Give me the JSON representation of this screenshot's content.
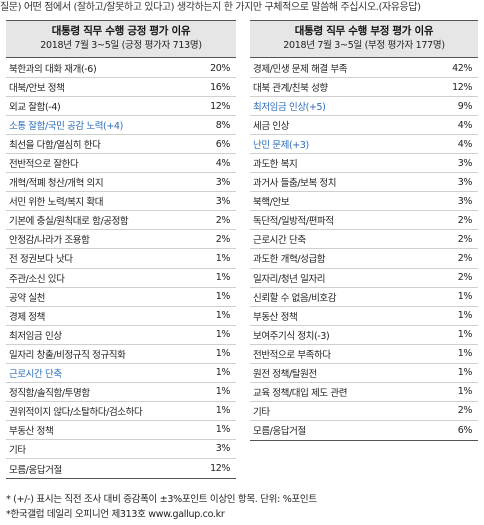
{
  "question": "질문) 어떤 점에서 (잘하고/잘못하고 있다고) 생각하는지 한 가지만 구체적으로 말씀해 주십시오.(자유응답)",
  "positive": {
    "title": "대통령 직무 수행 긍정 평가 이유",
    "subtitle": "2018년 7월 3~5일 (긍정 평가자 713명)",
    "rows": [
      {
        "label": "북한과의 대화 재개(-6)",
        "value": "20%",
        "highlight": false
      },
      {
        "label": "대북/안보 정책",
        "value": "16%",
        "highlight": false
      },
      {
        "label": "외교 잘함(-4)",
        "value": "12%",
        "highlight": false
      },
      {
        "label": "소통 잘함/국민 공감 노력(+4)",
        "value": "8%",
        "highlight": true
      },
      {
        "label": "최선을 다함/열심히 한다",
        "value": "6%",
        "highlight": false
      },
      {
        "label": "전반적으로 잘한다",
        "value": "4%",
        "highlight": false
      },
      {
        "label": "개혁/적폐 청산/개혁 의지",
        "value": "3%",
        "highlight": false
      },
      {
        "label": "서민 위한 노력/복지 확대",
        "value": "3%",
        "highlight": false
      },
      {
        "label": "기본에 충실/원칙대로 함/공정함",
        "value": "2%",
        "highlight": false
      },
      {
        "label": "안정감/나라가 조용함",
        "value": "2%",
        "highlight": false
      },
      {
        "label": "전 정권보다 낫다",
        "value": "1%",
        "highlight": false
      },
      {
        "label": "주관/소신 있다",
        "value": "1%",
        "highlight": false
      },
      {
        "label": "공약 실천",
        "value": "1%",
        "highlight": false
      },
      {
        "label": "경제 정책",
        "value": "1%",
        "highlight": false
      },
      {
        "label": "최저임금 인상",
        "value": "1%",
        "highlight": false
      },
      {
        "label": "일자리 창출/비정규직 정규직화",
        "value": "1%",
        "highlight": false
      },
      {
        "label": "근로시간 단축",
        "value": "1%",
        "highlight": true
      },
      {
        "label": "정직함/솔직함/투명함",
        "value": "1%",
        "highlight": false
      },
      {
        "label": "권위적이지 않다/소탈하다/검소하다",
        "value": "1%",
        "highlight": false
      },
      {
        "label": "부동산 정책",
        "value": "1%",
        "highlight": false
      },
      {
        "label": "기타",
        "value": "3%",
        "highlight": false
      },
      {
        "label": "모름/응답거절",
        "value": "12%",
        "highlight": false
      }
    ]
  },
  "negative": {
    "title": "대통령 직무 수행 부정 평가 이유",
    "subtitle": "2018년 7월 3~5일 (부정 평가자 177명)",
    "rows": [
      {
        "label": "경제/민생 문제 해결 부족",
        "value": "42%",
        "highlight": false
      },
      {
        "label": "대북 관계/친북 성향",
        "value": "12%",
        "highlight": false
      },
      {
        "label": "최저임금 인상(+5)",
        "value": "9%",
        "highlight": true
      },
      {
        "label": "세금 인상",
        "value": "4%",
        "highlight": false
      },
      {
        "label": "난민 문제(+3)",
        "value": "4%",
        "highlight": true
      },
      {
        "label": "과도한 복지",
        "value": "3%",
        "highlight": false
      },
      {
        "label": "과거사 들춤/보복 정치",
        "value": "3%",
        "highlight": false
      },
      {
        "label": "북핵/안보",
        "value": "3%",
        "highlight": false
      },
      {
        "label": "독단적/일방적/편파적",
        "value": "2%",
        "highlight": false
      },
      {
        "label": "근로시간 단축",
        "value": "2%",
        "highlight": false
      },
      {
        "label": "과도한 개혁/성급함",
        "value": "2%",
        "highlight": false
      },
      {
        "label": "일자리/청년 일자리",
        "value": "2%",
        "highlight": false
      },
      {
        "label": "신뢰할 수 없음/비호감",
        "value": "1%",
        "highlight": false
      },
      {
        "label": "부동산 정책",
        "value": "1%",
        "highlight": false
      },
      {
        "label": "보여주기식 정치(-3)",
        "value": "1%",
        "highlight": false
      },
      {
        "label": "전반적으로 부족하다",
        "value": "1%",
        "highlight": false
      },
      {
        "label": "원전 정책/탈원전",
        "value": "1%",
        "highlight": false
      },
      {
        "label": "교육 정책/대입 제도 관련",
        "value": "1%",
        "highlight": false
      },
      {
        "label": "기타",
        "value": "2%",
        "highlight": false
      },
      {
        "label": "모름/응답거절",
        "value": "6%",
        "highlight": false
      }
    ]
  },
  "notes": [
    "* (+/-) 표시는 직전 조사 대비 증감폭이 ±3%포인트 이상인 항목. 단위: %포인트",
    "*한국갤럽 데일리 오피니언 제313호 www.gallup.co.kr"
  ]
}
